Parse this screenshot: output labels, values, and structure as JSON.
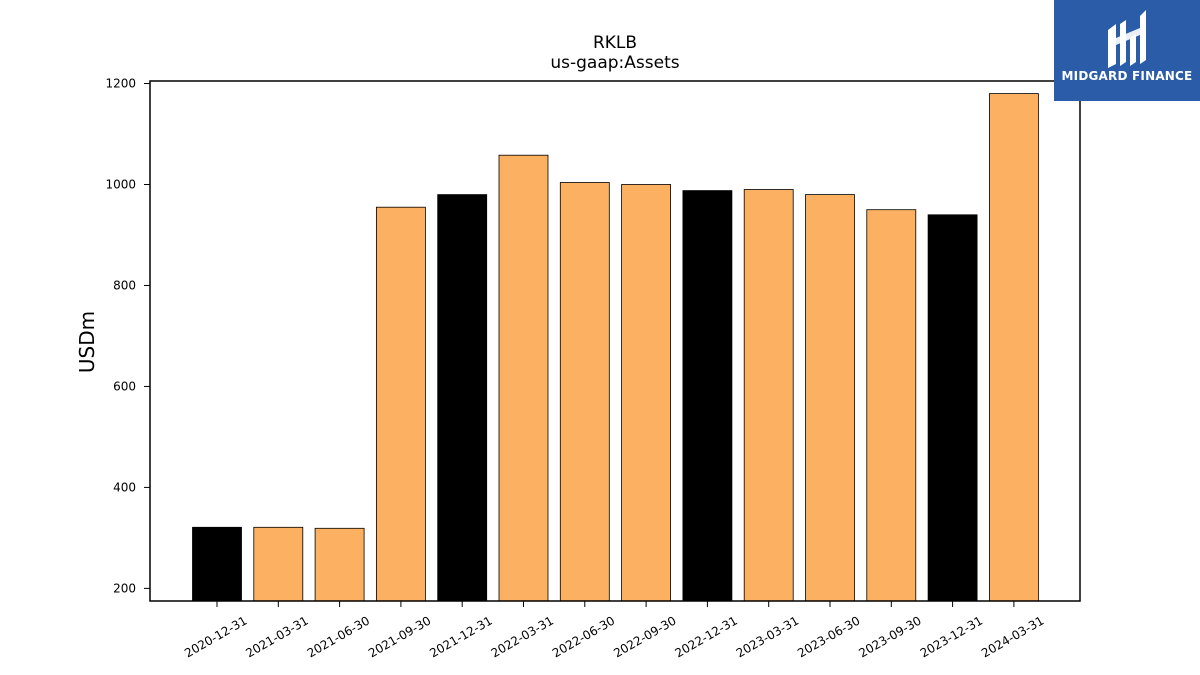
{
  "chart_data": {
    "type": "bar",
    "title": "RKLB",
    "subtitle": "us-gaap:Assets",
    "xlabel": "",
    "ylabel": "USDm",
    "ylim": [
      175,
      1205
    ],
    "yticks": [
      200,
      400,
      600,
      800,
      1000,
      1200
    ],
    "grid": false,
    "categories": [
      "2020-12-31",
      "2021-03-31",
      "2021-06-30",
      "2021-09-30",
      "2021-12-31",
      "2022-03-31",
      "2022-06-30",
      "2022-09-30",
      "2022-12-31",
      "2023-03-31",
      "2023-06-30",
      "2023-09-30",
      "2023-12-31",
      "2024-03-31"
    ],
    "values": [
      321,
      321,
      319,
      955,
      980,
      1058,
      1004,
      1000,
      988,
      990,
      980,
      950,
      940,
      1180
    ],
    "bar_colors": [
      "#000000",
      "#fbb161",
      "#fbb161",
      "#fbb161",
      "#000000",
      "#fbb161",
      "#fbb161",
      "#fbb161",
      "#000000",
      "#fbb161",
      "#fbb161",
      "#fbb161",
      "#000000",
      "#fbb161"
    ]
  },
  "logo": {
    "text": "MIDGARD FINANCE",
    "background": "#2a5ca8"
  }
}
